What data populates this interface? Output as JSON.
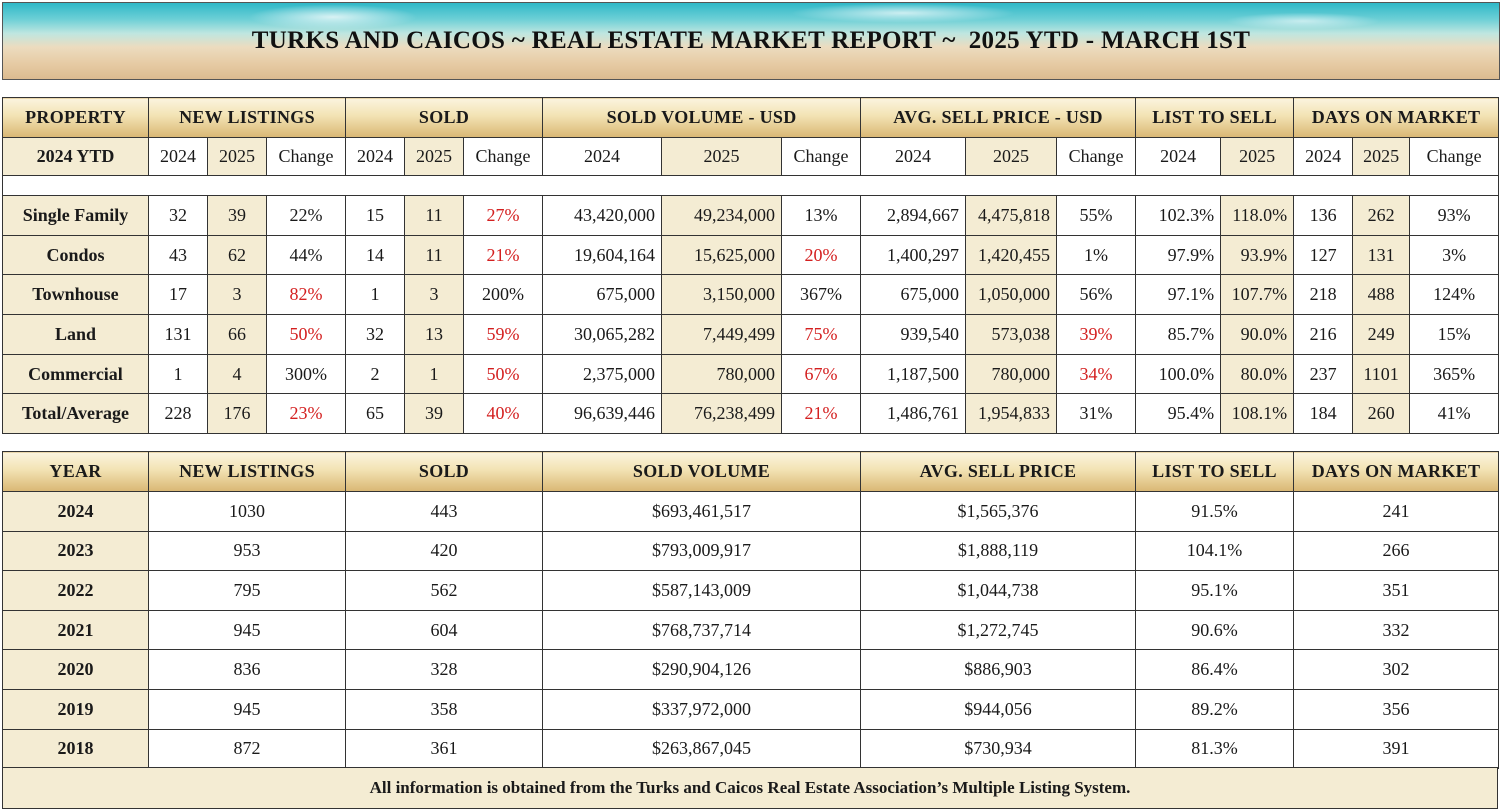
{
  "title": "TURKS AND CAICOS ~ REAL ESTATE MARKET REPORT ~  2025 YTD - MARCH 1ST",
  "ytd": {
    "headers": {
      "property": "PROPERTY",
      "new_listings": "NEW LISTINGS",
      "sold": "SOLD",
      "sold_volume": "SOLD VOLUME - USD",
      "avg_price": "AVG. SELL PRICE - USD",
      "list_to_sell": "LIST TO SELL",
      "days_on_market": "DAYS ON MARKET"
    },
    "subheaders": {
      "row_label": "2024 YTD",
      "y2024": "2024",
      "y2025": "2025",
      "change": "Change"
    },
    "rows": [
      {
        "name": "Single Family",
        "nl24": "32",
        "nl25": "39",
        "nlc": "22%",
        "nlc_red": false,
        "s24": "15",
        "s25": "11",
        "sc": "27%",
        "sc_red": true,
        "v24": "43,420,000",
        "v25": "49,234,000",
        "vc": "13%",
        "vc_red": false,
        "p24": "2,894,667",
        "p25": "4,475,818",
        "pc": "55%",
        "pc_red": false,
        "l24": "102.3%",
        "l25": "118.0%",
        "d24": "136",
        "d25": "262",
        "dc": "93%"
      },
      {
        "name": "Condos",
        "nl24": "43",
        "nl25": "62",
        "nlc": "44%",
        "nlc_red": false,
        "s24": "14",
        "s25": "11",
        "sc": "21%",
        "sc_red": true,
        "v24": "19,604,164",
        "v25": "15,625,000",
        "vc": "20%",
        "vc_red": true,
        "p24": "1,400,297",
        "p25": "1,420,455",
        "pc": "1%",
        "pc_red": false,
        "l24": "97.9%",
        "l25": "93.9%",
        "d24": "127",
        "d25": "131",
        "dc": "3%"
      },
      {
        "name": "Townhouse",
        "nl24": "17",
        "nl25": "3",
        "nlc": "82%",
        "nlc_red": true,
        "s24": "1",
        "s25": "3",
        "sc": "200%",
        "sc_red": false,
        "v24": "675,000",
        "v25": "3,150,000",
        "vc": "367%",
        "vc_red": false,
        "p24": "675,000",
        "p25": "1,050,000",
        "pc": "56%",
        "pc_red": false,
        "l24": "97.1%",
        "l25": "107.7%",
        "d24": "218",
        "d25": "488",
        "dc": "124%"
      },
      {
        "name": "Land",
        "nl24": "131",
        "nl25": "66",
        "nlc": "50%",
        "nlc_red": true,
        "s24": "32",
        "s25": "13",
        "sc": "59%",
        "sc_red": true,
        "v24": "30,065,282",
        "v25": "7,449,499",
        "vc": "75%",
        "vc_red": true,
        "p24": "939,540",
        "p25": "573,038",
        "pc": "39%",
        "pc_red": true,
        "l24": "85.7%",
        "l25": "90.0%",
        "d24": "216",
        "d25": "249",
        "dc": "15%"
      },
      {
        "name": "Commercial",
        "nl24": "1",
        "nl25": "4",
        "nlc": "300%",
        "nlc_red": false,
        "s24": "2",
        "s25": "1",
        "sc": "50%",
        "sc_red": true,
        "v24": "2,375,000",
        "v25": "780,000",
        "vc": "67%",
        "vc_red": true,
        "p24": "1,187,500",
        "p25": "780,000",
        "pc": "34%",
        "pc_red": true,
        "l24": "100.0%",
        "l25": "80.0%",
        "d24": "237",
        "d25": "1101",
        "dc": "365%"
      },
      {
        "name": "Total/Average",
        "nl24": "228",
        "nl25": "176",
        "nlc": "23%",
        "nlc_red": true,
        "s24": "65",
        "s25": "39",
        "sc": "40%",
        "sc_red": true,
        "v24": "96,639,446",
        "v25": "76,238,499",
        "vc": "21%",
        "vc_red": true,
        "p24": "1,486,761",
        "p25": "1,954,833",
        "pc": "31%",
        "pc_red": false,
        "l24": "95.4%",
        "l25": "108.1%",
        "d24": "184",
        "d25": "260",
        "dc": "41%"
      }
    ]
  },
  "annual": {
    "headers": {
      "year": "YEAR",
      "new_listings": "NEW LISTINGS",
      "sold": "SOLD",
      "sold_volume": "SOLD VOLUME",
      "avg_price": "AVG. SELL PRICE",
      "list_to_sell": "LIST TO SELL",
      "days_on_market": "DAYS ON MARKET"
    },
    "rows": [
      {
        "year": "2024",
        "nl": "1030",
        "sold": "443",
        "vol": "$693,461,517",
        "avg": "$1,565,376",
        "lts": "91.5%",
        "dom": "241"
      },
      {
        "year": "2023",
        "nl": "953",
        "sold": "420",
        "vol": "$793,009,917",
        "avg": "$1,888,119",
        "lts": "104.1%",
        "dom": "266"
      },
      {
        "year": "2022",
        "nl": "795",
        "sold": "562",
        "vol": "$587,143,009",
        "avg": "$1,044,738",
        "lts": "95.1%",
        "dom": "351"
      },
      {
        "year": "2021",
        "nl": "945",
        "sold": "604",
        "vol": "$768,737,714",
        "avg": "$1,272,745",
        "lts": "90.6%",
        "dom": "332"
      },
      {
        "year": "2020",
        "nl": "836",
        "sold": "328",
        "vol": "$290,904,126",
        "avg": "$886,903",
        "lts": "86.4%",
        "dom": "302"
      },
      {
        "year": "2019",
        "nl": "945",
        "sold": "358",
        "vol": "$337,972,000",
        "avg": "$944,056",
        "lts": "89.2%",
        "dom": "356"
      },
      {
        "year": "2018",
        "nl": "872",
        "sold": "361",
        "vol": "$263,867,045",
        "avg": "$730,934",
        "lts": "81.3%",
        "dom": "391"
      }
    ]
  },
  "footer": "All information is obtained from the Turks and Caicos Real Estate Association’s Multiple Listing System."
}
